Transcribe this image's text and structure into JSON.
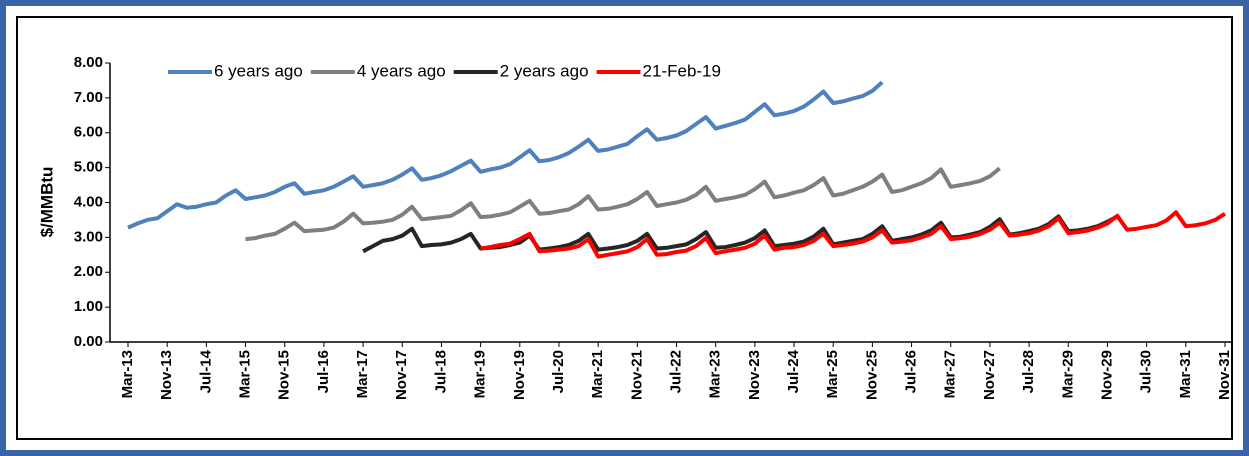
{
  "chart_data": {
    "type": "line",
    "y_label": "$/MMBtu",
    "ylim": [
      0,
      8
    ],
    "yticks": [
      {
        "value": 0,
        "label": "0.00"
      },
      {
        "value": 1,
        "label": "1.00"
      },
      {
        "value": 2,
        "label": "2.00"
      },
      {
        "value": 3,
        "label": "3.00"
      },
      {
        "value": 4,
        "label": "4.00"
      },
      {
        "value": 5,
        "label": "5.00"
      },
      {
        "value": 6,
        "label": "6.00"
      },
      {
        "value": 7,
        "label": "7.00"
      },
      {
        "value": 8,
        "label": "8.00"
      }
    ],
    "categories": [
      "Mar-13",
      null,
      null,
      null,
      "Nov-13",
      null,
      null,
      null,
      "Jul-14",
      null,
      null,
      null,
      "Mar-15",
      null,
      null,
      null,
      "Nov-15",
      null,
      null,
      null,
      "Jul-16",
      null,
      null,
      null,
      "Mar-17",
      null,
      null,
      null,
      "Nov-17",
      null,
      null,
      null,
      "Jul-18",
      null,
      null,
      null,
      "Mar-19",
      null,
      null,
      null,
      "Nov-19",
      null,
      null,
      null,
      "Jul-20",
      null,
      null,
      null,
      "Mar-21",
      null,
      null,
      null,
      "Nov-21",
      null,
      null,
      null,
      "Jul-22",
      null,
      null,
      null,
      "Mar-23",
      null,
      null,
      null,
      "Nov-23",
      null,
      null,
      null,
      "Jul-24",
      null,
      null,
      null,
      "Mar-25",
      null,
      null,
      null,
      "Nov-25",
      null,
      null,
      null,
      "Jul-26",
      null,
      null,
      null,
      "Mar-27",
      null,
      null,
      null,
      "Nov-27",
      null,
      null,
      null,
      "Jul-28",
      null,
      null,
      null,
      "Mar-29",
      null,
      null,
      null,
      "Nov-29",
      null,
      null,
      null,
      "Jul-30",
      null,
      null,
      null,
      "Mar-31",
      null,
      null,
      null,
      "Nov-31",
      null
    ],
    "series": [
      {
        "name": "6 years ago",
        "color": "#4f81bd",
        "values": [
          3.28,
          3.4,
          3.5,
          3.55,
          3.75,
          3.95,
          3.85,
          3.88,
          3.95,
          4.0,
          4.2,
          4.35,
          4.1,
          4.15,
          4.2,
          4.3,
          4.45,
          4.55,
          4.25,
          4.3,
          4.35,
          4.45,
          4.6,
          4.75,
          4.45,
          4.5,
          4.55,
          4.65,
          4.8,
          4.98,
          4.65,
          4.7,
          4.78,
          4.9,
          5.05,
          5.2,
          4.88,
          4.95,
          5.0,
          5.1,
          5.3,
          5.5,
          5.18,
          5.22,
          5.3,
          5.42,
          5.6,
          5.8,
          5.48,
          5.52,
          5.6,
          5.68,
          5.9,
          6.1,
          5.8,
          5.85,
          5.92,
          6.05,
          6.25,
          6.45,
          6.12,
          6.2,
          6.28,
          6.38,
          6.6,
          6.82,
          6.5,
          6.55,
          6.62,
          6.75,
          6.95,
          7.18,
          6.85,
          6.9,
          6.98,
          7.05,
          7.2,
          7.45,
          null,
          null,
          null,
          null,
          null,
          null,
          null,
          null,
          null,
          null,
          null,
          null,
          null,
          null,
          null,
          null,
          null,
          null,
          null,
          null,
          null,
          null,
          null,
          null,
          null,
          null,
          null,
          null,
          null,
          null,
          null,
          null,
          null,
          null,
          null,
          null
        ]
      },
      {
        "name": "4 years ago",
        "color": "#7f7f7f",
        "values": [
          null,
          null,
          null,
          null,
          null,
          null,
          null,
          null,
          null,
          null,
          null,
          null,
          2.95,
          2.98,
          3.05,
          3.1,
          3.25,
          3.42,
          3.18,
          3.2,
          3.22,
          3.28,
          3.45,
          3.68,
          3.4,
          3.42,
          3.45,
          3.5,
          3.65,
          3.88,
          3.52,
          3.55,
          3.58,
          3.62,
          3.78,
          3.98,
          3.58,
          3.6,
          3.65,
          3.72,
          3.88,
          4.05,
          3.68,
          3.7,
          3.75,
          3.8,
          3.95,
          4.18,
          3.8,
          3.82,
          3.88,
          3.95,
          4.1,
          4.3,
          3.9,
          3.95,
          4.0,
          4.08,
          4.22,
          4.45,
          4.05,
          4.1,
          4.15,
          4.22,
          4.38,
          4.6,
          4.15,
          4.2,
          4.28,
          4.35,
          4.5,
          4.7,
          4.2,
          4.25,
          4.35,
          4.45,
          4.6,
          4.8,
          4.3,
          4.35,
          4.45,
          4.55,
          4.7,
          4.95,
          4.45,
          4.5,
          4.55,
          4.62,
          4.75,
          4.98,
          null,
          null,
          null,
          null,
          null,
          null,
          null,
          null,
          null,
          null,
          null,
          null,
          null,
          null,
          null,
          null,
          null,
          null,
          null,
          null,
          null,
          null,
          null,
          null
        ]
      },
      {
        "name": "2 years ago",
        "color": "#262626",
        "values": [
          null,
          null,
          null,
          null,
          null,
          null,
          null,
          null,
          null,
          null,
          null,
          null,
          null,
          null,
          null,
          null,
          null,
          null,
          null,
          null,
          null,
          null,
          null,
          null,
          2.6,
          2.75,
          2.9,
          2.95,
          3.05,
          3.25,
          2.75,
          2.78,
          2.8,
          2.85,
          2.95,
          3.1,
          2.68,
          2.7,
          2.72,
          2.78,
          2.85,
          3.05,
          2.65,
          2.68,
          2.72,
          2.78,
          2.9,
          3.1,
          2.65,
          2.68,
          2.72,
          2.78,
          2.9,
          3.1,
          2.68,
          2.7,
          2.75,
          2.8,
          2.95,
          3.15,
          2.7,
          2.72,
          2.78,
          2.85,
          2.98,
          3.2,
          2.75,
          2.78,
          2.82,
          2.88,
          3.02,
          3.25,
          2.8,
          2.85,
          2.9,
          2.95,
          3.1,
          3.32,
          2.9,
          2.95,
          3.0,
          3.08,
          3.2,
          3.42,
          3.0,
          3.02,
          3.08,
          3.15,
          3.3,
          3.52,
          3.08,
          3.12,
          3.18,
          3.25,
          3.38,
          3.6,
          3.18,
          3.2,
          3.25,
          3.32,
          3.45,
          3.6,
          null,
          null,
          null,
          null,
          null,
          null,
          null,
          null,
          null,
          null,
          null,
          null
        ]
      },
      {
        "name": "21-Feb-19",
        "color": "#ff0000",
        "values": [
          null,
          null,
          null,
          null,
          null,
          null,
          null,
          null,
          null,
          null,
          null,
          null,
          null,
          null,
          null,
          null,
          null,
          null,
          null,
          null,
          null,
          null,
          null,
          null,
          null,
          null,
          null,
          null,
          null,
          null,
          null,
          null,
          null,
          null,
          null,
          null,
          2.68,
          2.72,
          2.78,
          2.82,
          2.95,
          3.1,
          2.6,
          2.62,
          2.65,
          2.68,
          2.75,
          2.95,
          2.45,
          2.5,
          2.55,
          2.6,
          2.72,
          2.95,
          2.5,
          2.52,
          2.58,
          2.62,
          2.75,
          2.98,
          2.55,
          2.6,
          2.65,
          2.7,
          2.82,
          3.05,
          2.65,
          2.7,
          2.72,
          2.78,
          2.9,
          3.1,
          2.75,
          2.78,
          2.82,
          2.88,
          3.0,
          3.2,
          2.85,
          2.88,
          2.92,
          3.0,
          3.1,
          3.32,
          2.95,
          2.98,
          3.02,
          3.1,
          3.22,
          3.42,
          3.05,
          3.08,
          3.12,
          3.2,
          3.32,
          3.55,
          3.12,
          3.15,
          3.2,
          3.28,
          3.4,
          3.62,
          3.22,
          3.25,
          3.3,
          3.35,
          3.48,
          3.72,
          3.32,
          3.35,
          3.4,
          3.5,
          3.68,
          null
        ]
      }
    ]
  }
}
